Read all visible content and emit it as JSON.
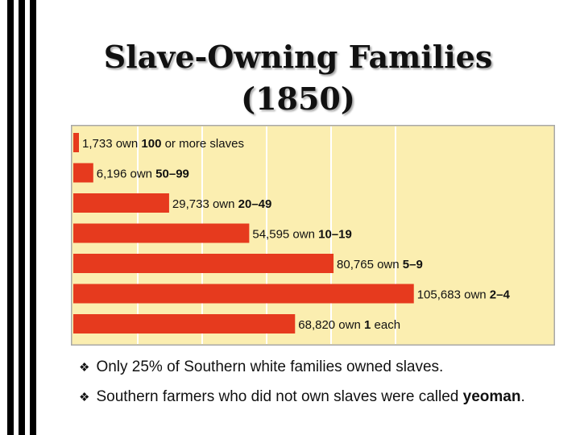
{
  "slide": {
    "title_line1": "Slave-Owning Families",
    "title_line2": "(1850)",
    "bullet_symbol": "❖",
    "bullet1": "Only 25% of Southern white families owned slaves.",
    "bullet2_text": "Southern farmers who did not own slaves were called",
    "bullet2_term": "yeoman",
    "bullet2_end": "."
  },
  "colors": {
    "bar": "#e63a1e",
    "chart_bg": "#fbeeb0",
    "grid": "#ffffff",
    "border": "#a8a8a8",
    "stripes": "#000000"
  },
  "chart_data": {
    "type": "bar",
    "orientation": "horizontal",
    "title": "",
    "xlabel": "",
    "ylabel": "",
    "grid": true,
    "xlim": [
      0,
      120000
    ],
    "bars": [
      {
        "value": 1733,
        "count_label": "1,733 own",
        "range_label": "100",
        "suffix": "or more slaves"
      },
      {
        "value": 6196,
        "count_label": "6,196 own",
        "range_label": "50–99",
        "suffix": ""
      },
      {
        "value": 29733,
        "count_label": "29,733 own",
        "range_label": "20–49",
        "suffix": ""
      },
      {
        "value": 54595,
        "count_label": "54,595 own",
        "range_label": "10–19",
        "suffix": ""
      },
      {
        "value": 80765,
        "count_label": "80,765 own",
        "range_label": "5–9",
        "suffix": ""
      },
      {
        "value": 105683,
        "count_label": "105,683 own",
        "range_label": "2–4",
        "suffix": ""
      },
      {
        "value": 68820,
        "count_label": "68,820 own",
        "range_label": "1",
        "suffix": "each"
      }
    ]
  }
}
